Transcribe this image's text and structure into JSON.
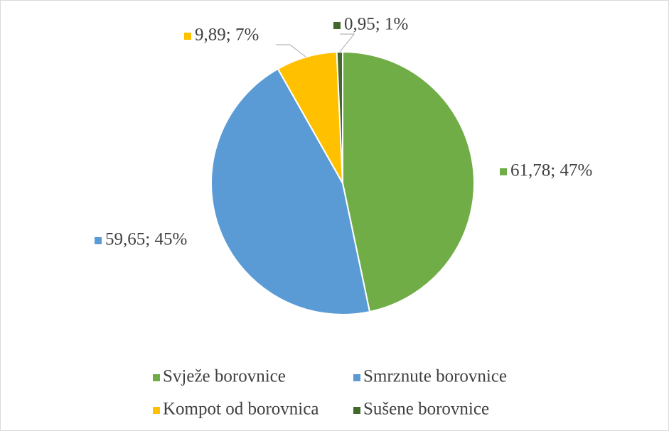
{
  "chart_data": {
    "type": "pie",
    "categories": [
      "Svježe borovnice",
      "Smrznute borovnice",
      "Kompot od borovnica",
      "Sušene borovnice"
    ],
    "values": [
      61.78,
      59.65,
      9.89,
      0.95
    ],
    "value_labels": [
      "61,78; 47%",
      "59,65; 45%",
      "9,89; 7%",
      "0,95; 1%"
    ],
    "colors": [
      "#70ad47",
      "#5b9bd5",
      "#ffc000",
      "#43682b"
    ],
    "legend": "bottom"
  }
}
